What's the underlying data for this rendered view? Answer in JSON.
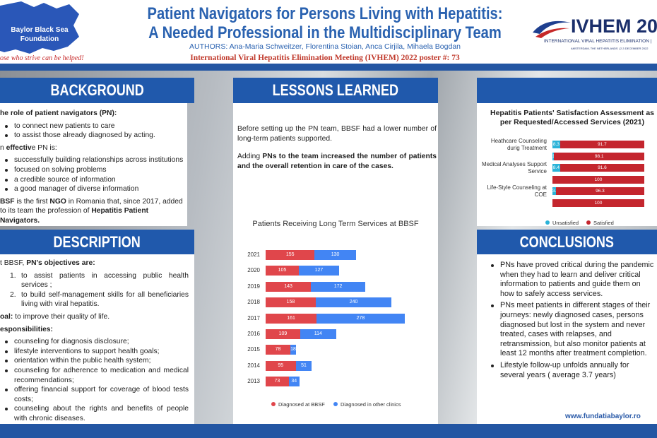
{
  "header": {
    "logo_text": [
      "Baylor Black Sea",
      "Foundation"
    ],
    "tagline": "ose who strive can be helped!",
    "title": [
      "Patient Navigators for Persons Living with Hepatitis:",
      "A Needed Professional in the Multidisciplinary Team"
    ],
    "authors": "AUTHORS: Ana-Maria Schweitzer, Florentina Stoian, Anca Cirjila, Mihaela Bogdan",
    "meeting": "International Viral Hepatitis Elimination Meeting (IVHEM) 2022 poster #: 73",
    "ivhem_logo": {
      "name": "IVHEM 20",
      "subtitle": "INTERNATIONAL VIRAL HEPATITIS ELIMINATION |",
      "location": "AMSTERDAM, THE NETHERLANDS | 2-3 DECEMBER 2022"
    }
  },
  "background": {
    "heading": "BACKGROUND",
    "paragraphs": [
      {
        "runs": [
          {
            "t": "he role of patient navigators (PN):",
            "b": true
          }
        ],
        "bullets": [
          [
            {
              "t": "to connect new patients to care"
            }
          ],
          [
            {
              "t": "to assist those already diagnosed by acting."
            }
          ]
        ]
      },
      {
        "runs": [
          {
            "t": "n "
          },
          {
            "t": "effectiv",
            "b": true
          },
          {
            "t": "e PN is:"
          }
        ],
        "bullets": [
          [
            {
              "t": "successfully building relationships across institutions"
            }
          ],
          [
            {
              "t": "focused on solving problems"
            }
          ],
          [
            {
              "t": "a credible source of information"
            }
          ],
          [
            {
              "t": "a good manager of diverse information"
            }
          ]
        ]
      },
      {
        "runs": [
          {
            "t": "BSF",
            "b": true
          },
          {
            "t": " is the first "
          },
          {
            "t": "NGO",
            "b": true
          },
          {
            "t": " in Romania that, since 2017, added to its team the profession of "
          },
          {
            "t": "Hepatitis Patient Navigators.",
            "b": true
          }
        ]
      }
    ]
  },
  "description": {
    "heading": "DESCRIPTION",
    "paragraphs": [
      {
        "runs": [
          {
            "t": "t BBSF, "
          },
          {
            "t": "PN's objectives are:",
            "b": true
          }
        ],
        "numbered": [
          {
            "marker": "1.",
            "runs": [
              {
                "t": "to assist patients in accessing public health services ;"
              }
            ]
          },
          {
            "marker": "2.",
            "runs": [
              {
                "t": "to build self-management skills for all beneficiaries living with viral hepatitis."
              }
            ]
          }
        ]
      },
      {
        "runs": [
          {
            "t": "oal:",
            "b": true
          },
          {
            "t": " to improve their quality of life."
          }
        ]
      },
      {
        "runs": [
          {
            "t": "esponsibilities:",
            "b": true
          }
        ],
        "bullets": [
          [
            {
              "t": "counseling for diagnosis disclosure;"
            }
          ],
          [
            {
              "t": "lifestyle interventions to support health goals;"
            }
          ],
          [
            {
              "t": "orientation within the public health system;"
            }
          ],
          [
            {
              "t": "counseling for adherence to medication and medical recommendations;"
            }
          ],
          [
            {
              "t": "offering financial support for coverage of blood tests costs;"
            }
          ],
          [
            {
              "t": "counseling about the rights and benefits of people with chronic diseases."
            }
          ]
        ]
      }
    ]
  },
  "lessons": {
    "heading": "LESSONS LEARNED",
    "paragraphs": [
      {
        "runs": [
          {
            "t": "Before setting up the PN team, BBSF had a lower number of long-term patients supported."
          }
        ]
      },
      {
        "runs": [
          {
            "t": "Adding "
          },
          {
            "t": "PNs to the team increased the number of patients and the overall retention in care of the cases.",
            "b": true
          }
        ]
      }
    ]
  },
  "conclusions": {
    "heading": "CONCLUSIONS",
    "paragraphs": [
      {
        "bullets": [
          [
            {
              "t": "PNs have proved critical during the pandemic when they had to learn and deliver critical information to patients and guide them on how to safely access services."
            }
          ],
          [
            {
              "t": "PNs meet patients in different stages of their journeys: newly diagnosed cases, persons diagnosed but lost in the system and never treated, cases with relapses, and retransmission, but also monitor patients at least 12 months after treatment completion."
            }
          ],
          [
            {
              "t": "Lifestyle follow-up unfolds annually for several years ( average 3.7 years)"
            }
          ]
        ]
      }
    ],
    "url": "www.fundatiabaylor.ro"
  },
  "chart_data": [
    {
      "type": "hbar_stacked",
      "title": "Patients Receiving Long Term Services at BBSF",
      "categories": [
        "2021",
        "2020",
        "2019",
        "2018",
        "2017",
        "2016",
        "2015",
        "2014",
        "2013"
      ],
      "series": [
        {
          "name": "Diagnosed at BBSF",
          "color": "#e0464b",
          "values": [
            155,
            105,
            143,
            158,
            161,
            109,
            78,
            95,
            73
          ]
        },
        {
          "name": "Diagnosed in other clinics",
          "color": "#4285f4",
          "values": [
            130,
            127,
            172,
            240,
            278,
            114,
            18,
            51,
            34
          ]
        }
      ],
      "xlim": [
        0,
        500
      ]
    },
    {
      "type": "hbar_stacked",
      "title": "Hepatitis Patients' Satisfaction Assessment as per Requested/Accessed Services (2021)",
      "categories": [
        "Heathcare Counseling durig Treatment",
        null,
        "Medical Analyses Support Service",
        null,
        "Life-Style Counseling at COE",
        null
      ],
      "series": [
        {
          "name": "Unsatisfied",
          "color": "#2bb3d8",
          "values": [
            8.3,
            1.9,
            8.4,
            null,
            3.7,
            null
          ]
        },
        {
          "name": "Satisfied",
          "color": "#c4262e",
          "values": [
            91.7,
            98.1,
            91.6,
            100,
            96.3,
            100
          ]
        }
      ],
      "xlim": [
        0,
        100
      ]
    }
  ]
}
